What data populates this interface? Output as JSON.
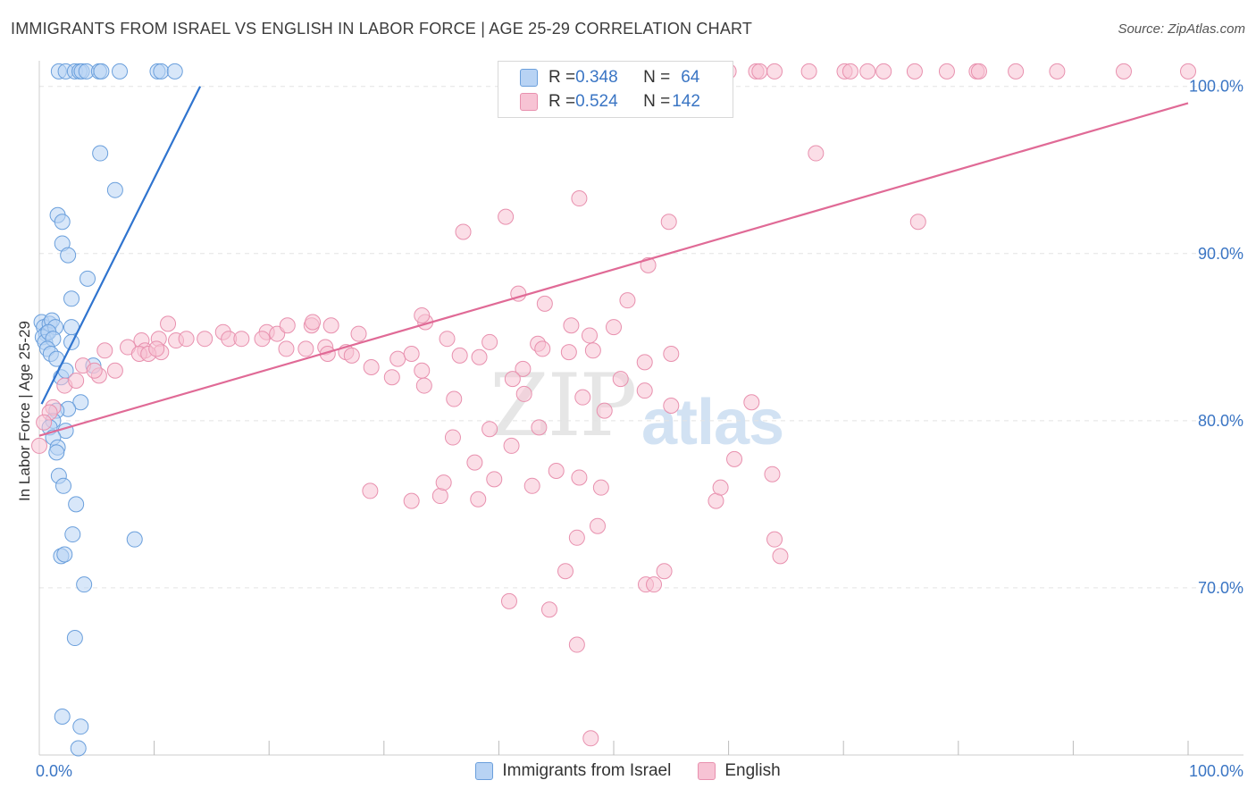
{
  "title": "IMMIGRANTS FROM ISRAEL VS ENGLISH IN LABOR FORCE | AGE 25-29 CORRELATION CHART",
  "source": "Source: ZipAtlas.com",
  "watermark": {
    "zip": "ZIP",
    "atlas": "atlas"
  },
  "legend": {
    "rows": [
      {
        "r_label": "R = ",
        "r_value": "0.348",
        "n_label": "N = ",
        "n_value": "64"
      },
      {
        "r_label": "R = ",
        "r_value": "0.524",
        "n_label": "N = ",
        "n_value": "142"
      }
    ]
  },
  "colors": {
    "blue_fill": "#b8d3f4",
    "blue_stroke": "#6a9fdc",
    "blue_line": "#2f74cf",
    "pink_fill": "#f7c3d4",
    "pink_stroke": "#e890ae",
    "pink_line": "#e06a96",
    "axis_label": "#3a75c4",
    "grid": "#e4e4e4"
  },
  "chart_data": {
    "type": "scatter",
    "title": "IMMIGRANTS FROM ISRAEL VS ENGLISH IN LABOR FORCE | AGE 25-29 CORRELATION CHART",
    "xlabel": "",
    "ylabel": "In Labor Force | Age 25-29",
    "xlim": [
      0,
      100
    ],
    "ylim": [
      60,
      101
    ],
    "x_tick_labels": [
      {
        "value": 0,
        "label": "0.0%"
      },
      {
        "value": 100,
        "label": "100.0%"
      }
    ],
    "y_tick_labels": [
      {
        "value": 70,
        "label": "70.0%"
      },
      {
        "value": 80,
        "label": "80.0%"
      },
      {
        "value": 90,
        "label": "90.0%"
      },
      {
        "value": 100,
        "label": "100.0%"
      }
    ],
    "grid": true,
    "legend_position": "bottom",
    "series": [
      {
        "name": "Immigrants from Israel",
        "r": 0.348,
        "n": 64,
        "trend": {
          "x": [
            0.2,
            14.0
          ],
          "y": [
            81.0,
            100.0
          ]
        },
        "points": [
          [
            1.7,
            100.9
          ],
          [
            2.3,
            100.9
          ],
          [
            3.1,
            100.9
          ],
          [
            3.5,
            100.9
          ],
          [
            3.7,
            100.9
          ],
          [
            4.1,
            100.9
          ],
          [
            5.2,
            100.9
          ],
          [
            5.4,
            100.9
          ],
          [
            7.0,
            100.9
          ],
          [
            10.3,
            100.9
          ],
          [
            10.6,
            100.9
          ],
          [
            11.8,
            100.9
          ],
          [
            5.3,
            96.0
          ],
          [
            6.6,
            93.8
          ],
          [
            1.6,
            92.3
          ],
          [
            2.0,
            91.9
          ],
          [
            2.0,
            90.6
          ],
          [
            2.5,
            89.9
          ],
          [
            4.2,
            88.5
          ],
          [
            2.8,
            87.3
          ],
          [
            0.2,
            85.9
          ],
          [
            0.4,
            85.6
          ],
          [
            0.6,
            85.2
          ],
          [
            0.9,
            85.8
          ],
          [
            1.1,
            86.0
          ],
          [
            1.4,
            85.6
          ],
          [
            0.3,
            85.0
          ],
          [
            0.5,
            84.7
          ],
          [
            0.8,
            85.3
          ],
          [
            1.2,
            84.9
          ],
          [
            0.7,
            84.3
          ],
          [
            1.0,
            84.0
          ],
          [
            1.5,
            83.7
          ],
          [
            2.8,
            85.6
          ],
          [
            2.8,
            84.7
          ],
          [
            1.9,
            82.6
          ],
          [
            2.3,
            83.0
          ],
          [
            4.7,
            83.3
          ],
          [
            3.6,
            81.1
          ],
          [
            2.5,
            80.7
          ],
          [
            1.5,
            80.6
          ],
          [
            1.2,
            80.0
          ],
          [
            0.9,
            79.6
          ],
          [
            2.3,
            79.4
          ],
          [
            1.2,
            79.0
          ],
          [
            1.6,
            78.4
          ],
          [
            1.5,
            78.1
          ],
          [
            1.7,
            76.7
          ],
          [
            2.1,
            76.1
          ],
          [
            3.2,
            75.0
          ],
          [
            8.3,
            72.9
          ],
          [
            2.9,
            73.2
          ],
          [
            1.9,
            71.9
          ],
          [
            2.2,
            72.0
          ],
          [
            3.9,
            70.2
          ],
          [
            3.1,
            67.0
          ],
          [
            2.0,
            62.3
          ],
          [
            3.6,
            61.7
          ],
          [
            3.4,
            60.4
          ]
        ]
      },
      {
        "name": "English",
        "r": 0.524,
        "n": 142,
        "trend": {
          "x": [
            0.0,
            100.0
          ],
          "y": [
            79.1,
            99.0
          ]
        },
        "points": [
          [
            48.3,
            100.9
          ],
          [
            50.6,
            100.9
          ],
          [
            53.7,
            100.9
          ],
          [
            55.2,
            100.9
          ],
          [
            60.0,
            100.9
          ],
          [
            62.4,
            100.9
          ],
          [
            62.7,
            100.9
          ],
          [
            64.0,
            100.9
          ],
          [
            67.0,
            100.9
          ],
          [
            70.1,
            100.9
          ],
          [
            70.6,
            100.9
          ],
          [
            72.1,
            100.9
          ],
          [
            73.5,
            100.9
          ],
          [
            76.2,
            100.9
          ],
          [
            79.0,
            100.9
          ],
          [
            81.6,
            100.9
          ],
          [
            81.8,
            100.9
          ],
          [
            85.0,
            100.9
          ],
          [
            88.6,
            100.9
          ],
          [
            94.4,
            100.9
          ],
          [
            100.0,
            100.9
          ],
          [
            67.6,
            96.0
          ],
          [
            47.0,
            93.3
          ],
          [
            40.6,
            92.2
          ],
          [
            36.9,
            91.3
          ],
          [
            54.8,
            91.9
          ],
          [
            76.5,
            91.9
          ],
          [
            53.0,
            89.3
          ],
          [
            41.7,
            87.6
          ],
          [
            51.2,
            87.2
          ],
          [
            44.0,
            87.0
          ],
          [
            11.2,
            85.8
          ],
          [
            19.8,
            85.3
          ],
          [
            20.7,
            85.2
          ],
          [
            27.8,
            85.2
          ],
          [
            21.6,
            85.7
          ],
          [
            23.7,
            85.7
          ],
          [
            25.4,
            85.7
          ],
          [
            16.0,
            85.3
          ],
          [
            16.5,
            84.9
          ],
          [
            17.6,
            84.9
          ],
          [
            19.4,
            84.9
          ],
          [
            8.9,
            84.8
          ],
          [
            10.4,
            84.9
          ],
          [
            11.9,
            84.8
          ],
          [
            12.8,
            84.9
          ],
          [
            14.4,
            84.9
          ],
          [
            7.7,
            84.4
          ],
          [
            9.2,
            84.2
          ],
          [
            10.6,
            84.1
          ],
          [
            5.7,
            84.2
          ],
          [
            24.9,
            84.4
          ],
          [
            21.5,
            84.3
          ],
          [
            23.2,
            84.3
          ],
          [
            25.1,
            84.0
          ],
          [
            26.7,
            84.1
          ],
          [
            33.6,
            85.9
          ],
          [
            35.5,
            84.9
          ],
          [
            39.2,
            84.7
          ],
          [
            43.4,
            84.6
          ],
          [
            50.0,
            85.6
          ],
          [
            46.3,
            85.7
          ],
          [
            23.8,
            85.9
          ],
          [
            33.3,
            86.3
          ],
          [
            3.8,
            83.3
          ],
          [
            5.2,
            82.7
          ],
          [
            6.6,
            83.0
          ],
          [
            4.8,
            83.0
          ],
          [
            2.2,
            82.1
          ],
          [
            3.2,
            82.4
          ],
          [
            8.7,
            84.0
          ],
          [
            9.5,
            84.0
          ],
          [
            10.2,
            84.3
          ],
          [
            27.2,
            83.9
          ],
          [
            28.9,
            83.2
          ],
          [
            31.2,
            83.7
          ],
          [
            32.4,
            84.0
          ],
          [
            30.7,
            82.6
          ],
          [
            33.3,
            83.0
          ],
          [
            36.6,
            83.9
          ],
          [
            38.3,
            83.8
          ],
          [
            42.1,
            83.1
          ],
          [
            43.8,
            84.3
          ],
          [
            48.2,
            84.2
          ],
          [
            52.7,
            83.5
          ],
          [
            55.0,
            84.0
          ],
          [
            46.1,
            84.1
          ],
          [
            47.9,
            85.1
          ],
          [
            52.7,
            81.8
          ],
          [
            50.6,
            82.5
          ],
          [
            41.2,
            82.5
          ],
          [
            33.5,
            82.1
          ],
          [
            36.1,
            81.3
          ],
          [
            42.2,
            81.6
          ],
          [
            47.3,
            81.4
          ],
          [
            55.0,
            80.9
          ],
          [
            62.0,
            81.1
          ],
          [
            49.2,
            80.6
          ],
          [
            1.2,
            80.8
          ],
          [
            0.9,
            80.5
          ],
          [
            0.4,
            79.9
          ],
          [
            0.0,
            78.5
          ],
          [
            36.0,
            79.0
          ],
          [
            39.2,
            79.5
          ],
          [
            41.1,
            78.5
          ],
          [
            43.5,
            79.6
          ],
          [
            37.9,
            77.5
          ],
          [
            45.0,
            77.0
          ],
          [
            47.0,
            76.6
          ],
          [
            58.9,
            75.2
          ],
          [
            59.3,
            76.0
          ],
          [
            60.5,
            77.7
          ],
          [
            48.6,
            73.7
          ],
          [
            46.8,
            73.0
          ],
          [
            45.8,
            71.0
          ],
          [
            52.8,
            70.2
          ],
          [
            53.5,
            70.2
          ],
          [
            63.8,
            76.8
          ],
          [
            64.0,
            72.9
          ],
          [
            64.5,
            71.9
          ],
          [
            54.4,
            71.0
          ],
          [
            34.9,
            75.5
          ],
          [
            32.4,
            75.2
          ],
          [
            28.8,
            75.8
          ],
          [
            38.2,
            75.3
          ],
          [
            40.9,
            69.2
          ],
          [
            44.4,
            68.7
          ],
          [
            46.8,
            66.6
          ],
          [
            48.0,
            61.0
          ],
          [
            39.6,
            76.5
          ],
          [
            42.9,
            76.1
          ],
          [
            35.2,
            76.3
          ],
          [
            48.9,
            76.0
          ]
        ]
      }
    ]
  },
  "bottom_legend": [
    {
      "label": "Immigrants from Israel"
    },
    {
      "label": "English"
    }
  ]
}
